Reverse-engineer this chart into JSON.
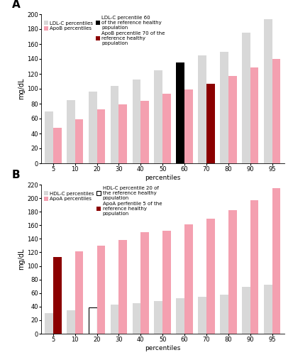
{
  "panel_A": {
    "percentiles": [
      5,
      10,
      20,
      30,
      40,
      50,
      60,
      70,
      80,
      90,
      95
    ],
    "ldl_c": [
      70,
      85,
      96,
      104,
      112,
      125,
      135,
      145,
      150,
      175,
      193
    ],
    "apob": [
      48,
      59,
      72,
      79,
      84,
      93,
      99,
      107,
      117,
      129,
      140
    ],
    "ldl_highlight_idx": 6,
    "apob_highlight_idx": 7,
    "ldl_color": "#d8d8d8",
    "ldl_highlight_color": "#000000",
    "apob_color": "#f4a0b0",
    "apob_highlight_color": "#8b0000",
    "ylim": [
      0,
      200
    ],
    "yticks": [
      0,
      20,
      40,
      60,
      80,
      100,
      120,
      140,
      160,
      180,
      200
    ],
    "ylabel": "mg/dL",
    "xlabel": "percentiles",
    "title": "A",
    "legend_ldl": "LDL-C percentiles",
    "legend_apob": "ApoB percentiles",
    "legend_ldl60": "LDL-C percentile 60\nof the reference healthy\npopulation",
    "legend_apob70": "ApoB percentile 70 of the\nreference healthy\npopulation"
  },
  "panel_B": {
    "percentiles": [
      5,
      10,
      20,
      30,
      40,
      50,
      60,
      70,
      80,
      90,
      95
    ],
    "hdl_c": [
      30,
      35,
      39,
      43,
      45,
      48,
      52,
      54,
      58,
      69,
      72
    ],
    "apoa": [
      113,
      122,
      130,
      138,
      150,
      152,
      161,
      170,
      182,
      197,
      215
    ],
    "hdl_highlight_idx": 2,
    "apoa_highlight_idx": 0,
    "hdl_color": "#d8d8d8",
    "hdl_highlight_color": "#ffffff",
    "apoa_color": "#f4a0b0",
    "apoa_highlight_color": "#8b0000",
    "ylim": [
      0,
      220
    ],
    "yticks": [
      0,
      20,
      40,
      60,
      80,
      100,
      120,
      140,
      160,
      180,
      200,
      220
    ],
    "ylabel": "mg/dL",
    "xlabel": "percentiles",
    "title": "B",
    "legend_hdl": "HDL-C percentiles",
    "legend_apoa": "ApoA percentiles",
    "legend_hdl20": "HDL-C percentile 20 of\nthe reference healthy\npopulation",
    "legend_apoa5": "ApoA perfentile 5 of the\nreference healthy\npopulation"
  }
}
